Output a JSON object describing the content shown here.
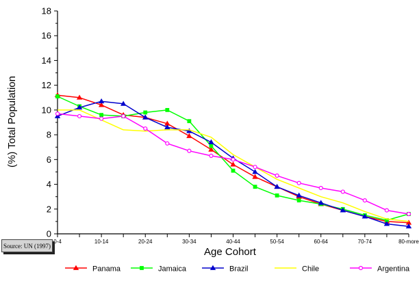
{
  "source_note": "Source: UN (1997)",
  "chart_data": {
    "type": "line",
    "title": "",
    "xlabel": "Age Cohort",
    "ylabel": "(%) Total Population",
    "ylim": [
      0,
      18
    ],
    "yticks": [
      0,
      2,
      4,
      6,
      8,
      10,
      12,
      14,
      16,
      18
    ],
    "categories": [
      "0-4",
      "5-9",
      "10-14",
      "15-19",
      "20-24",
      "25-29",
      "30-34",
      "35-39",
      "40-44",
      "45-49",
      "50-54",
      "55-59",
      "60-64",
      "65-69",
      "70-74",
      "75-79",
      "80-more"
    ],
    "x_tick_labels": [
      "0-4",
      "10-14",
      "20-24",
      "30-34",
      "40-44",
      "50-54",
      "60-64",
      "70-74",
      "80-more"
    ],
    "grid": false,
    "legend_position": "bottom",
    "series": [
      {
        "name": "Panama",
        "color": "#ff0000",
        "marker": "triangle",
        "values": [
          11.2,
          11.0,
          10.4,
          9.6,
          9.4,
          8.9,
          7.9,
          6.8,
          5.6,
          4.6,
          3.8,
          3.0,
          2.4,
          1.9,
          1.4,
          1.0,
          0.9
        ]
      },
      {
        "name": "Jamaica",
        "color": "#00ff00",
        "marker": "square",
        "values": [
          11.1,
          10.3,
          9.6,
          9.5,
          9.8,
          10.0,
          9.1,
          7.1,
          5.1,
          3.8,
          3.1,
          2.7,
          2.4,
          2.0,
          1.5,
          1.1,
          1.6
        ]
      },
      {
        "name": "Brazil",
        "color": "#0000cc",
        "marker": "triangle",
        "values": [
          9.5,
          10.2,
          10.7,
          10.5,
          9.4,
          8.6,
          8.3,
          7.4,
          6.1,
          5.0,
          3.8,
          3.1,
          2.5,
          1.9,
          1.4,
          0.8,
          0.6
        ]
      },
      {
        "name": "Chile",
        "color": "#ffff00",
        "marker": "none",
        "values": [
          10.0,
          10.0,
          9.2,
          8.4,
          8.3,
          8.4,
          8.4,
          7.8,
          6.4,
          5.4,
          4.4,
          3.7,
          3.0,
          2.5,
          1.8,
          1.2,
          1.0
        ]
      },
      {
        "name": "Argentina",
        "color": "#ff00ff",
        "marker": "circle",
        "values": [
          9.7,
          9.5,
          9.3,
          9.5,
          8.5,
          7.3,
          6.7,
          6.3,
          6.0,
          5.4,
          4.7,
          4.1,
          3.7,
          3.4,
          2.7,
          1.9,
          1.6
        ]
      }
    ]
  }
}
